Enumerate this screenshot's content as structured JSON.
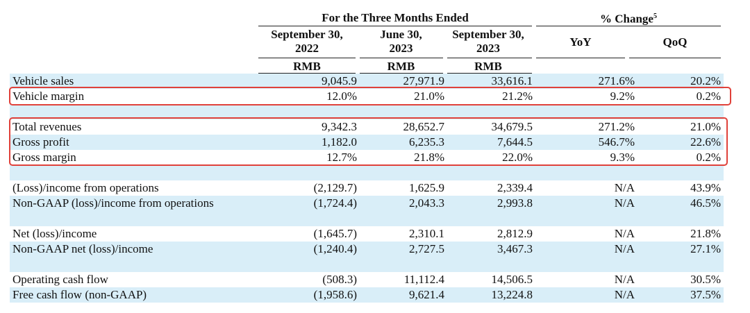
{
  "header": {
    "period_group": "For the Three Months Ended",
    "change_group": "% Change",
    "change_footnote": "5",
    "columns": [
      {
        "line1": "September 30,",
        "line2": "2022",
        "currency": "RMB"
      },
      {
        "line1": "June 30,",
        "line2": "2023",
        "currency": "RMB"
      },
      {
        "line1": "September 30,",
        "line2": "2023",
        "currency": "RMB"
      }
    ],
    "yoy": "YoY",
    "qoq": "QoQ"
  },
  "rows": [
    {
      "label": "Vehicle sales",
      "values": [
        "9,045.9",
        "27,971.9",
        "33,616.1",
        "271.6%",
        "20.2%"
      ]
    },
    {
      "label": "Vehicle margin",
      "values": [
        "12.0%",
        "21.0%",
        "21.2%",
        "9.2%",
        "0.2%"
      ]
    },
    {
      "label": "Total revenues",
      "values": [
        "9,342.3",
        "28,652.7",
        "34,679.5",
        "271.2%",
        "21.0%"
      ]
    },
    {
      "label": "Gross profit",
      "values": [
        "1,182.0",
        "6,235.3",
        "7,644.5",
        "546.7%",
        "22.6%"
      ]
    },
    {
      "label": "Gross margin",
      "values": [
        "12.7%",
        "21.8%",
        "22.0%",
        "9.3%",
        "0.2%"
      ]
    },
    {
      "label": "(Loss)/income from operations",
      "values": [
        "(2,129.7)",
        "1,625.9",
        "2,339.4",
        "N/A",
        "43.9%"
      ]
    },
    {
      "label": "Non-GAAP (loss)/income from operations",
      "values": [
        "(1,724.4)",
        "2,043.3",
        "2,993.8",
        "N/A",
        "46.5%"
      ]
    },
    {
      "label": "Net (loss)/income",
      "values": [
        "(1,645.7)",
        "2,310.1",
        "2,812.9",
        "N/A",
        "21.8%"
      ]
    },
    {
      "label": "Non-GAAP net (loss)/income",
      "values": [
        "(1,240.4)",
        "2,727.5",
        "3,467.3",
        "N/A",
        "27.1%"
      ]
    },
    {
      "label": "Operating cash flow",
      "values": [
        "(508.3)",
        "11,112.4",
        "14,506.5",
        "N/A",
        "30.5%"
      ]
    },
    {
      "label": "Free cash flow (non-GAAP)",
      "values": [
        "(1,958.6)",
        "9,621.4",
        "13,224.8",
        "N/A",
        "37.5%"
      ]
    }
  ],
  "colors": {
    "row_shade": "#d9eef8",
    "highlight_box": "#e0413a",
    "text": "#111111"
  }
}
